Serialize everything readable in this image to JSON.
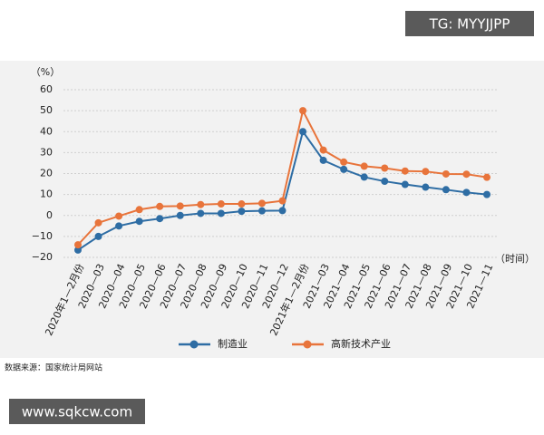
{
  "chart_data": {
    "type": "line",
    "y_unit_label": "（%）",
    "x_unit_label": "（时间）",
    "categories": [
      "2020年1—2月份",
      "2020—03",
      "2020—04",
      "2020—05",
      "2020—06",
      "2020—07",
      "2020—08",
      "2020—09",
      "2020—10",
      "2020—11",
      "2020—12",
      "2021年1—2月份",
      "2021—03",
      "2021—04",
      "2021—05",
      "2021—06",
      "2021—07",
      "2021—08",
      "2021—09",
      "2021—10",
      "2021—11"
    ],
    "series": [
      {
        "name": "制造业",
        "color": "#2e6da4",
        "values": [
          -16.5,
          -10,
          -5,
          -2.8,
          -1.5,
          0,
          1,
          1,
          2,
          2.2,
          2.3,
          40,
          26.3,
          22,
          18.3,
          16.3,
          14.8,
          13.5,
          12.3,
          11,
          10
        ]
      },
      {
        "name": "高新技术产业",
        "color": "#e8743b",
        "values": [
          -14,
          -3.5,
          -0.3,
          2.8,
          4.3,
          4.5,
          5.2,
          5.5,
          5.5,
          5.8,
          7,
          50,
          31.2,
          25.5,
          23.5,
          22.6,
          21.2,
          21,
          19.8,
          19.7,
          18.2
        ]
      }
    ],
    "ylim": [
      -20,
      60
    ],
    "yticks": [
      {
        "value": -20,
        "label": "−20"
      },
      {
        "value": -10,
        "label": "−10"
      },
      0,
      10,
      20,
      30,
      40,
      50,
      60
    ],
    "grid": true
  },
  "source": "数据来源：国家统计局网站",
  "watermarks": [
    "TG: MYYJJPP",
    "www.sqkcw.com"
  ]
}
